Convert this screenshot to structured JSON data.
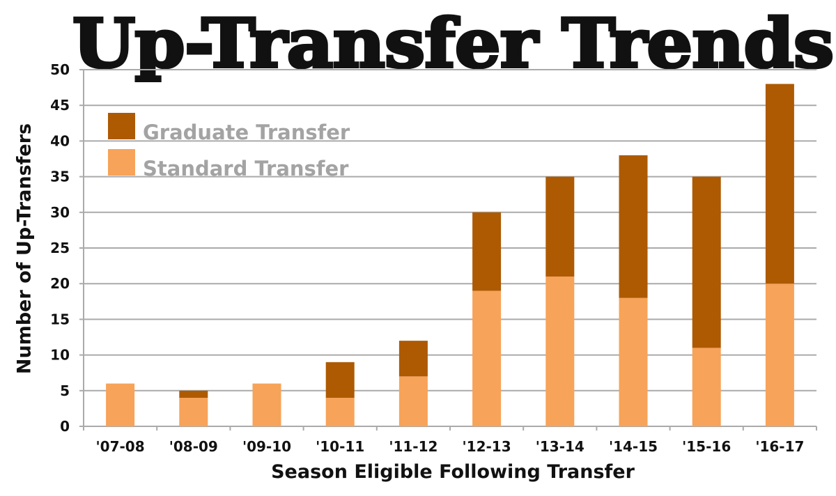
{
  "chart_data": {
    "type": "bar",
    "stacked": true,
    "title": "Up-Transfer Trends",
    "xlabel": "Season Eligible Following Transfer",
    "ylabel": "Number of Up-Transfers",
    "ylim": [
      0,
      50
    ],
    "yticks": [
      0,
      5,
      10,
      15,
      20,
      25,
      30,
      35,
      40,
      45,
      50
    ],
    "grid": true,
    "legend_position": "top-left",
    "categories": [
      "'07-08",
      "'08-09",
      "'09-10",
      "'10-11",
      "'11-12",
      "'12-13",
      "'13-14",
      "'14-15",
      "'15-16",
      "'16-17"
    ],
    "series": [
      {
        "name": "Standard Transfer",
        "color": "#f7a359",
        "values": [
          6,
          4,
          6,
          4,
          7,
          19,
          21,
          18,
          11,
          20
        ]
      },
      {
        "name": "Graduate Transfer",
        "color": "#ad5a03",
        "values": [
          0,
          1,
          0,
          5,
          5,
          11,
          14,
          20,
          24,
          28
        ]
      }
    ]
  }
}
